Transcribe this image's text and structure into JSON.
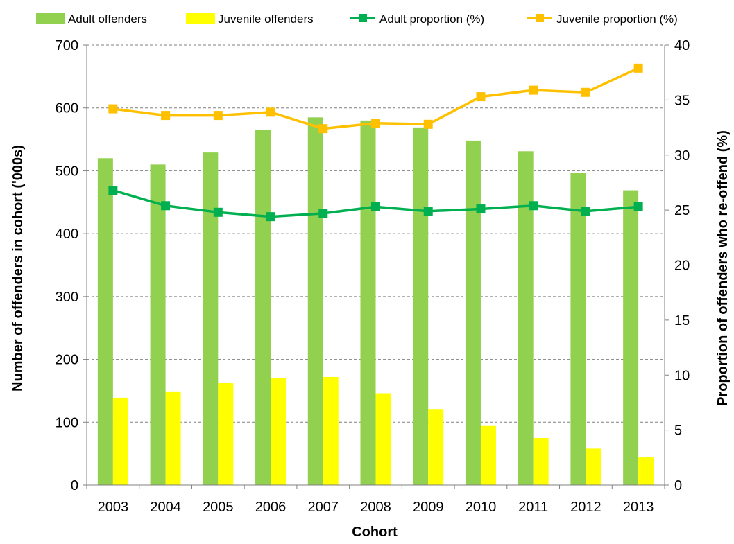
{
  "chart_data": {
    "type": "bar",
    "categories": [
      "2003",
      "2004",
      "2005",
      "2006",
      "2007",
      "2008",
      "2009",
      "2010",
      "2011",
      "2012",
      "2013"
    ],
    "series": [
      {
        "name": "Adult offenders",
        "kind": "bar",
        "axis": "left",
        "color": "#92D050",
        "values": [
          520,
          510,
          529,
          565,
          585,
          580,
          569,
          548,
          531,
          497,
          469
        ]
      },
      {
        "name": "Juvenile offenders",
        "kind": "bar",
        "axis": "left",
        "color": "#FFFF00",
        "values": [
          139,
          149,
          163,
          170,
          172,
          146,
          121,
          94,
          75,
          58,
          44
        ]
      },
      {
        "name": "Adult proportion (%)",
        "kind": "line",
        "axis": "right",
        "color": "#00B050",
        "values": [
          26.8,
          25.4,
          24.8,
          24.4,
          24.7,
          25.3,
          24.9,
          25.1,
          25.4,
          24.9,
          25.3
        ]
      },
      {
        "name": "Juvenile proportion (%)",
        "kind": "line",
        "axis": "right",
        "color": "#FFC000",
        "values": [
          34.2,
          33.6,
          33.6,
          33.9,
          32.4,
          32.9,
          32.8,
          35.3,
          35.9,
          35.7,
          37.9
        ]
      }
    ],
    "xlabel": "Cohort",
    "ylabel": "Number of offenders in cohort ('000s)",
    "y2label": "Proportion of offenders who re-offend (%)",
    "ylim": [
      0,
      700
    ],
    "y2lim": [
      0,
      40
    ],
    "yticks": [
      "0",
      "100",
      "200",
      "300",
      "400",
      "500",
      "600",
      "700"
    ],
    "y2ticks": [
      "0",
      "5",
      "10",
      "15",
      "20",
      "25",
      "30",
      "35",
      "40"
    ],
    "grid": true,
    "legend_position": "top"
  }
}
